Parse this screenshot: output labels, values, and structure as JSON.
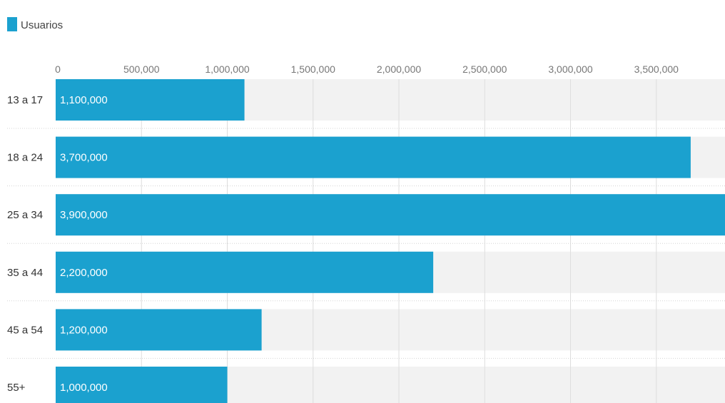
{
  "chart_data": {
    "type": "bar",
    "orientation": "horizontal",
    "categories": [
      "13 a 17",
      "18 a 24",
      "25 a 34",
      "35 a 44",
      "45 a 54",
      "55+"
    ],
    "series": [
      {
        "name": "Usuarios",
        "values": [
          1100000,
          3700000,
          3900000,
          2200000,
          1200000,
          1000000
        ],
        "value_labels": [
          "1,100,000",
          "3,700,000",
          "3,900,000",
          "2,200,000",
          "1,200,000",
          "1,000,000"
        ]
      }
    ],
    "x_ticks": [
      0,
      500000,
      1000000,
      1500000,
      2000000,
      2500000,
      3000000,
      3500000
    ],
    "x_tick_labels": [
      "0",
      "500,000",
      "1,000,000",
      "1,500,000",
      "2,000,000",
      "2,500,000",
      "3,000,000",
      "3,500,000"
    ],
    "xlim": [
      0,
      3900000
    ],
    "grid": true,
    "legend_position": "top-left",
    "title": "",
    "xlabel": "",
    "ylabel": ""
  },
  "colors": {
    "bar": "#1ba1cf",
    "track": "#f2f2f2",
    "gridline": "#dddddd"
  }
}
